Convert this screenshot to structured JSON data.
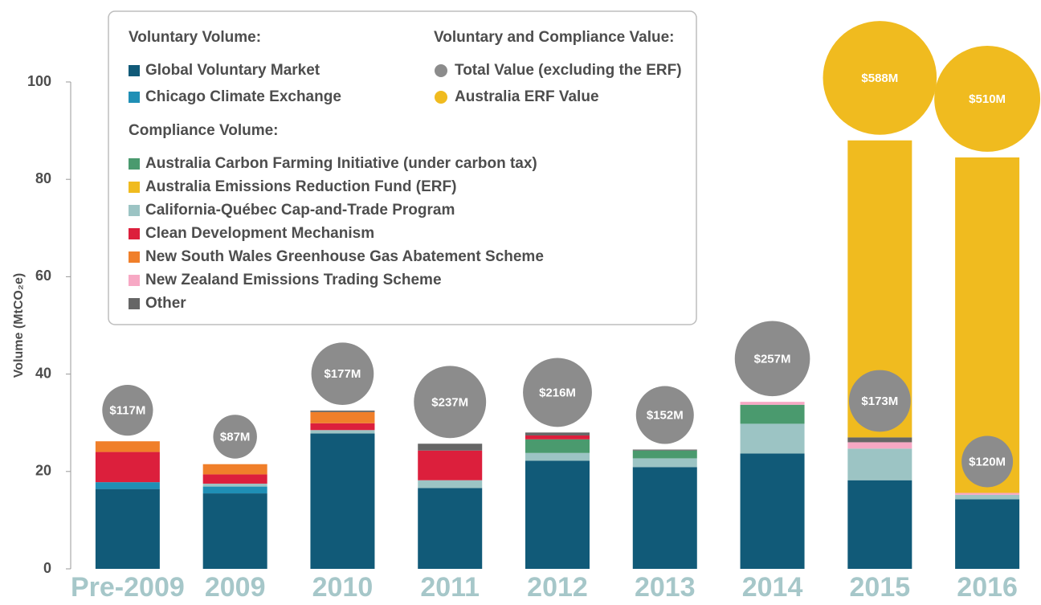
{
  "chart_data": {
    "type": "stacked_bar_bubble",
    "y_label": "Volume (MtCO₂e)",
    "categories": [
      "Pre-2009",
      "2009",
      "2010",
      "2011",
      "2012",
      "2013",
      "2014",
      "2015",
      "2016"
    ],
    "ylim": [
      0,
      100
    ],
    "yticks": [
      0,
      20,
      40,
      60,
      80,
      100
    ],
    "legend_headings": [
      "Voluntary Volume:",
      "Compliance Volume:",
      "Voluntary and Compliance Value:"
    ],
    "series": [
      {
        "name": "Global Voluntary Market",
        "color": "#115a78",
        "values": [
          16.4,
          15.5,
          27.8,
          16.6,
          22.2,
          20.9,
          23.7,
          18.2,
          14.3
        ]
      },
      {
        "name": "Chicago Climate Exchange",
        "color": "#1f8fb5",
        "values": [
          1.4,
          1.4,
          0,
          0,
          0,
          0,
          0,
          0,
          0
        ]
      },
      {
        "name": "Australia Carbon Farming Initiative (under carbon tax)",
        "color": "#4a9a6e",
        "values": [
          0,
          0,
          0,
          0,
          2.8,
          1.6,
          3.9,
          0,
          0
        ]
      },
      {
        "name": "Australia Emissions Reduction Fund (ERF)",
        "color": "#f0bb1f",
        "values": [
          0,
          0,
          0,
          0,
          0,
          0,
          0,
          61,
          68.9
        ]
      },
      {
        "name": "California-Québec Cap-and-Trade Program",
        "color": "#9cc4c4",
        "values": [
          0,
          0.6,
          0.7,
          1.6,
          1.6,
          1.8,
          6.1,
          6.5,
          0.9
        ]
      },
      {
        "name": "Clean Development Mechanism",
        "color": "#dc1f3c",
        "values": [
          6.2,
          1.9,
          1.4,
          6.1,
          0.8,
          0,
          0,
          0,
          0
        ]
      },
      {
        "name": "New South Wales Greenhouse Gas Abatement Scheme",
        "color": "#f07f2a",
        "values": [
          2.2,
          2.1,
          2.3,
          0,
          0,
          0,
          0,
          0,
          0
        ]
      },
      {
        "name": "New Zealand Emissions Trading Scheme",
        "color": "#f7a8c4",
        "values": [
          0,
          0,
          0,
          0,
          0,
          0,
          0.6,
          1.3,
          0.4
        ]
      },
      {
        "name": "Other",
        "color": "#666666",
        "values": [
          0,
          0,
          0.3,
          1.4,
          0.6,
          0.2,
          0,
          1,
          0
        ]
      }
    ],
    "value_series": [
      {
        "name": "Total Value (excluding the ERF)",
        "color": "#8c8c8c",
        "values": [
          117,
          87,
          177,
          237,
          216,
          152,
          257,
          173,
          120
        ],
        "value_labels": [
          "$117M",
          "$87M",
          "$177M",
          "$237M",
          "$216M",
          "$152M",
          "$257M",
          "$173M",
          "$120M"
        ]
      },
      {
        "name": "Australia ERF Value",
        "color": "#f0bb1f",
        "values": [
          null,
          null,
          null,
          null,
          null,
          null,
          null,
          588,
          510
        ],
        "value_labels": [
          null,
          null,
          null,
          null,
          null,
          null,
          null,
          "$588M",
          "$510M"
        ]
      }
    ]
  }
}
